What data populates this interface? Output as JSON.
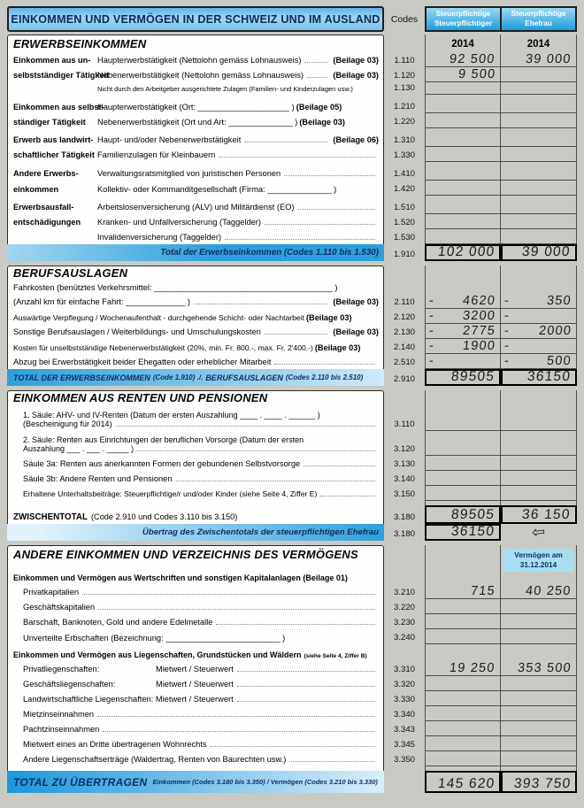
{
  "header": {
    "title": "EINKOMMEN UND VERMÖGEN IN DER SCHWEIZ UND IM AUSLAND",
    "codes_label": "Codes",
    "col1": {
      "line1": "Steuerpflichtige",
      "line2": "Steuerpflichtiger",
      "year": "2014"
    },
    "col2": {
      "line1": "Steuerpflichtige",
      "line2": "Ehefrau",
      "year": "2014"
    }
  },
  "colors": {
    "accent_blue": "#2e9fdc",
    "navy_text": "#0c2f66",
    "header_cyan": "#a8def2"
  },
  "s1": {
    "heading": "ERWERBSEINKOMMEN",
    "r1110": {
      "group": "Einkommen aus un-",
      "label": "Haupterwerbstätigkeit (Nettolohn gemäss Lohnausweis)",
      "beilage": "(Beilage 03)",
      "code": "1.110",
      "v1": "92 500",
      "v2": "39 000"
    },
    "r1120": {
      "group": "selbstständiger Tätigkeit",
      "label": "Nebenerwerbstätigkeit (Nettolohn gemäss Lohnausweis)",
      "beilage": "(Beilage 03)",
      "code": "1.120",
      "v1": "9 500",
      "v2": ""
    },
    "r1130": {
      "label": "Nicht durch den Arbeitgeber ausgerichtete Zulagen (Familien- und Kinderzulagen usw.)",
      "code": "1.130"
    },
    "r1210": {
      "group": "Einkommen aus selbst-",
      "label": "Haupterwerbstätigkeit (Ort: ____________________ )",
      "beilage": "(Beilage 05)",
      "code": "1.210"
    },
    "r1220": {
      "group": "ständiger Tätigkeit",
      "label": "Nebenerwerbstätigkeit (Ort und Art: ______________ )",
      "beilage": "(Beilage 03)",
      "code": "1.220"
    },
    "r1310": {
      "group": "Erwerb aus landwirt-",
      "label": "Haupt- und/oder Nebenerwerbstätigkeit",
      "beilage": "(Beilage 06)",
      "code": "1.310"
    },
    "r1330": {
      "group": "schaftlicher Tätigkeit",
      "label": "Familienzulagen für Kleinbauern",
      "code": "1.330"
    },
    "r1410": {
      "group": "Andere Erwerbs-",
      "label": "Verwaltungsratsmitglied von juristischen Personen",
      "code": "1.410"
    },
    "r1420": {
      "group": "einkommen",
      "label": "Kollektiv- oder Kommanditgesellschaft (Firma: ______________ )",
      "code": "1.420"
    },
    "r1510": {
      "group": "Erwerbsausfall-",
      "label": "Arbeitslosenversicherung (ALV) und Militärdienst (EO)",
      "code": "1.510"
    },
    "r1520": {
      "group": "entschädigungen",
      "label": "Kranken- und Unfallversicherung (Taggelder)",
      "code": "1.520"
    },
    "r1530": {
      "label": "Invalidenversicherung (Taggelder)",
      "code": "1.530"
    },
    "total": {
      "label": "Total der Erwerbseinkommen (Codes 1.110 bis 1.530)",
      "code": "1.910",
      "v1": "102 000",
      "v2": "39 000"
    }
  },
  "s2": {
    "heading": "BERUFSAUSLAGEN",
    "r0": {
      "label": "Fahrkosten (benütztes Verkehrsmittel: _______________________________________ )"
    },
    "r2110": {
      "label": "(Anzahl km für einfache Fahrt: _____________ )",
      "beilage": "(Beilage 03)",
      "code": "2.110",
      "neg1": "-",
      "v1": "4620",
      "neg2": "-",
      "v2": "350"
    },
    "r2120": {
      "label": "Auswärtige Verpflegung / Wochenaufenthalt - durchgehende Schicht- oder Nachtarbeit",
      "beilage": "(Beilage 03)",
      "code": "2.120",
      "neg1": "-",
      "v1": "3200",
      "neg2": "-",
      "v2": ""
    },
    "r2130": {
      "label": "Sonstige Berufsauslagen / Weiterbildungs- und Umschulungskosten",
      "beilage": "(Beilage 03)",
      "code": "2.130",
      "neg1": "-",
      "v1": "2775",
      "neg2": "-",
      "v2": "2000"
    },
    "r2140": {
      "label": "Kosten für unselbstständige Nebenerwerbstätigkeit (20%, min. Fr. 800.-, max. Fr. 2'400.-)",
      "beilage": "(Beilage 03)",
      "code": "2.140",
      "neg1": "-",
      "v1": "1900",
      "neg2": "-",
      "v2": ""
    },
    "r2510": {
      "label": "Abzug bei Erwerbstätigkeit beider Ehegatten oder erheblicher Mitarbeit",
      "code": "2.510",
      "neg1": "-",
      "v1": "",
      "neg2": "-",
      "v2": "500"
    },
    "total": {
      "b1": "TOTAL DER ERWERBSEINKOMMEN",
      "r1": "(Code 1.910) ./.",
      "b2": "BERUFSAUSLAGEN",
      "r2": "(Codes 2.110 bis 2.510)",
      "code": "2.910",
      "v1": "89505",
      "v2": "36150"
    }
  },
  "s3": {
    "heading": "EINKOMMEN AUS RENTEN UND PENSIONEN",
    "r3110": {
      "line1": "1. Säule: AHV- und IV-Renten (Datum der ersten Auszahlung ____ . ____ . ______ )",
      "line2": "(Bescheinigung für 2014)",
      "code": "3.110"
    },
    "r3120": {
      "line1": "2. Säule: Renten aus Einrichtungen der beruflichen Vorsorge (Datum der ersten",
      "line2": "Auszahlung ___ . ___ . _____ )",
      "code": "3.120"
    },
    "r3130": {
      "label": "Säule 3a: Renten aus anerkannten Formen der gebundenen Selbstvorsorge",
      "code": "3.130"
    },
    "r3140": {
      "label": "Säule 3b: Andere Renten und Pensionen",
      "code": "3.140"
    },
    "r3150": {
      "label": "Erhaltene Unterhaltsbeiträge: Steuerpflichtige/r und/oder Kinder (siehe Seite 4, Ziffer E)",
      "code": "3.150"
    },
    "zw": {
      "label_bold": "ZWISCHENTOTAL",
      "label_rest": "(Code 2.910 und Codes 3.110 bis 3.150)",
      "code": "3.180",
      "v1": "89505",
      "v2": "36 150"
    },
    "uebertrag": {
      "label": "Übertrag des Zwischentotals der steuerpflichtigen Ehefrau",
      "code": "3.180",
      "v1": "36150",
      "arrow": "⇦"
    }
  },
  "s4": {
    "heading": "ANDERE EINKOMMEN UND VERZEICHNIS DES VERMÖGENS",
    "verm_line1": "Vermögen am",
    "verm_line2": "31.12.2014",
    "sub1": "Einkommen und Vermögen aus Wertschriften und sonstigen Kapitalanlagen (Beilage 01)",
    "r3210": {
      "label": "Privatkapitalien",
      "code": "3.210",
      "v1": "715",
      "v2": "40 250"
    },
    "r3220": {
      "label": "Geschäftskapitalien",
      "code": "3.220"
    },
    "r3230": {
      "label": "Barschaft, Banknoten, Gold und andere Edelmetalle",
      "code": "3.230"
    },
    "r3240": {
      "label": "Unverteilte Erbschaften (Bezeichnung: _________________________ )",
      "code": "3.240"
    },
    "sub2": "Einkommen und Vermögen aus Liegenschaften, Grundstücken und Wäldern",
    "sub2_note": "(siehe Seite 4, Ziffer B)",
    "r3310": {
      "label1": "Privatliegenschaften:",
      "label2": "Mietwert / Steuerwert",
      "code": "3.310",
      "v1": "19 250",
      "v2": "353 500"
    },
    "r3320": {
      "label1": "Geschäftsliegenschaften:",
      "label2": "Mietwert / Steuerwert",
      "code": "3.320"
    },
    "r3330": {
      "label": "Landwirtschaftliche Liegenschaften: Mietwert / Steuerwert",
      "code": "3.330"
    },
    "r3340": {
      "label": "Mietzinseinnahmen",
      "code": "3.340"
    },
    "r3343": {
      "label": "Pachtzinseinnahmen",
      "code": "3.343"
    },
    "r3345": {
      "label": "Mietwert eines an Dritte übertragenen Wohnrechts",
      "code": "3.345"
    },
    "r3350": {
      "label": "Andere Liegenschaftserträge (Waldertrag, Renten von Baurechten usw.)",
      "code": "3.350"
    },
    "total": {
      "label_big": "TOTAL ZU ÜBERTRAGEN",
      "label_small": "Einkommen (Codes 3.180 bis 3.350) / Vermögen (Codes 3.210 bis 3.330)",
      "v1": "145 620",
      "v2": "393 750"
    }
  }
}
